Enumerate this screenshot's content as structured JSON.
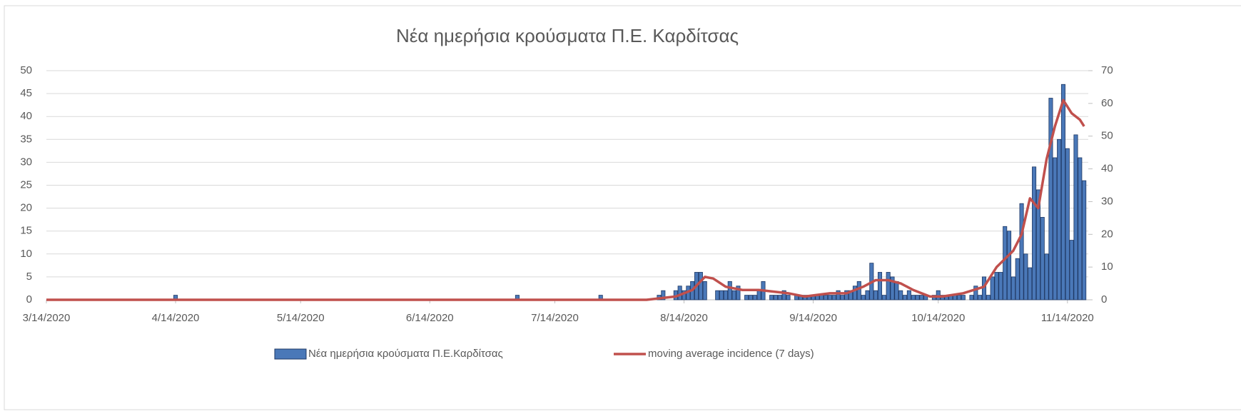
{
  "chart_data": {
    "type": "bar_line",
    "title": "Νέα ημερήσια κρούσματα Π.Ε. Καρδίτσας",
    "xlim": [
      "2020-03-14",
      "2020-11-19"
    ],
    "xticks": [
      {
        "value": "2020-03-14",
        "label": "3/14/2020"
      },
      {
        "value": "2020-04-14",
        "label": "4/14/2020"
      },
      {
        "value": "2020-05-14",
        "label": "5/14/2020"
      },
      {
        "value": "2020-06-14",
        "label": "6/14/2020"
      },
      {
        "value": "2020-07-14",
        "label": "7/14/2020"
      },
      {
        "value": "2020-08-14",
        "label": "8/14/2020"
      },
      {
        "value": "2020-09-14",
        "label": "9/14/2020"
      },
      {
        "value": "2020-10-14",
        "label": "10/14/2020"
      },
      {
        "value": "2020-11-14",
        "label": "11/14/2020"
      }
    ],
    "ylim": [
      0,
      50
    ],
    "yticks": [
      0,
      5,
      10,
      15,
      20,
      25,
      30,
      35,
      40,
      45,
      50
    ],
    "y2lim": [
      0,
      70
    ],
    "y2ticks": [
      0,
      10,
      20,
      30,
      40,
      50,
      60,
      70
    ],
    "grid": true,
    "legend": "bottom",
    "series": [
      {
        "name": "Νέα ημερήσια κρούσματα Π.Ε.Καρδίτσας",
        "type": "bar",
        "color": "#4a78b8",
        "edge": "#1f3864",
        "x": [
          "2020-04-14",
          "2020-07-05",
          "2020-07-25",
          "2020-08-08",
          "2020-08-09",
          "2020-08-12",
          "2020-08-13",
          "2020-08-14",
          "2020-08-15",
          "2020-08-16",
          "2020-08-17",
          "2020-08-18",
          "2020-08-19",
          "2020-08-22",
          "2020-08-23",
          "2020-08-24",
          "2020-08-25",
          "2020-08-26",
          "2020-08-27",
          "2020-08-29",
          "2020-08-30",
          "2020-08-31",
          "2020-09-01",
          "2020-09-02",
          "2020-09-04",
          "2020-09-05",
          "2020-09-06",
          "2020-09-07",
          "2020-09-08",
          "2020-09-10",
          "2020-09-11",
          "2020-09-12",
          "2020-09-13",
          "2020-09-14",
          "2020-09-15",
          "2020-09-16",
          "2020-09-17",
          "2020-09-18",
          "2020-09-19",
          "2020-09-20",
          "2020-09-21",
          "2020-09-22",
          "2020-09-23",
          "2020-09-24",
          "2020-09-25",
          "2020-09-26",
          "2020-09-27",
          "2020-09-28",
          "2020-09-29",
          "2020-09-30",
          "2020-10-01",
          "2020-10-02",
          "2020-10-03",
          "2020-10-04",
          "2020-10-05",
          "2020-10-06",
          "2020-10-07",
          "2020-10-08",
          "2020-10-09",
          "2020-10-10",
          "2020-10-11",
          "2020-10-13",
          "2020-10-14",
          "2020-10-15",
          "2020-10-16",
          "2020-10-17",
          "2020-10-18",
          "2020-10-19",
          "2020-10-20",
          "2020-10-22",
          "2020-10-23",
          "2020-10-24",
          "2020-10-25",
          "2020-10-26",
          "2020-10-27",
          "2020-10-28",
          "2020-10-29",
          "2020-10-30",
          "2020-10-31",
          "2020-11-01",
          "2020-11-02",
          "2020-11-03",
          "2020-11-04",
          "2020-11-05",
          "2020-11-06",
          "2020-11-07",
          "2020-11-08",
          "2020-11-09",
          "2020-11-10",
          "2020-11-11",
          "2020-11-12",
          "2020-11-13",
          "2020-11-14",
          "2020-11-15",
          "2020-11-16",
          "2020-11-17",
          "2020-11-18"
        ],
        "values": [
          1,
          1,
          1,
          1,
          2,
          2,
          3,
          2,
          3,
          4,
          6,
          6,
          4,
          2,
          2,
          2,
          4,
          2,
          3,
          1,
          1,
          1,
          2,
          4,
          1,
          1,
          1,
          2,
          1,
          1,
          1,
          1,
          1,
          1,
          1,
          1,
          1,
          1,
          1,
          2,
          1,
          2,
          2,
          3,
          4,
          1,
          2,
          8,
          2,
          6,
          1,
          6,
          5,
          4,
          2,
          1,
          2,
          1,
          1,
          1,
          1,
          1,
          2,
          1,
          1,
          1,
          1,
          1,
          1,
          1,
          3,
          1,
          5,
          1,
          5,
          6,
          6,
          16,
          15,
          5,
          9,
          21,
          10,
          7,
          29,
          24,
          18,
          10,
          44,
          31,
          35,
          47,
          33,
          13,
          36,
          31,
          26
        ]
      },
      {
        "name": "moving average incidence (7 days)",
        "type": "line",
        "axis": "y2",
        "color": "#c0504d",
        "x": [
          "2020-03-14",
          "2020-08-05",
          "2020-08-12",
          "2020-08-16",
          "2020-08-19",
          "2020-08-21",
          "2020-08-24",
          "2020-08-28",
          "2020-09-01",
          "2020-09-08",
          "2020-09-12",
          "2020-09-18",
          "2020-09-22",
          "2020-09-26",
          "2020-09-29",
          "2020-10-02",
          "2020-10-05",
          "2020-10-08",
          "2020-10-12",
          "2020-10-15",
          "2020-10-20",
          "2020-10-25",
          "2020-10-28",
          "2020-11-01",
          "2020-11-03",
          "2020-11-05",
          "2020-11-07",
          "2020-11-09",
          "2020-11-11",
          "2020-11-13",
          "2020-11-15",
          "2020-11-17",
          "2020-11-18"
        ],
        "values": [
          0,
          0,
          1,
          3,
          7,
          6.5,
          4,
          3,
          3,
          2,
          1,
          2,
          2,
          4,
          6,
          6,
          5,
          3,
          1,
          1,
          2,
          4,
          10,
          15,
          20,
          31,
          28,
          43,
          53,
          61,
          57,
          55,
          53
        ]
      }
    ]
  }
}
